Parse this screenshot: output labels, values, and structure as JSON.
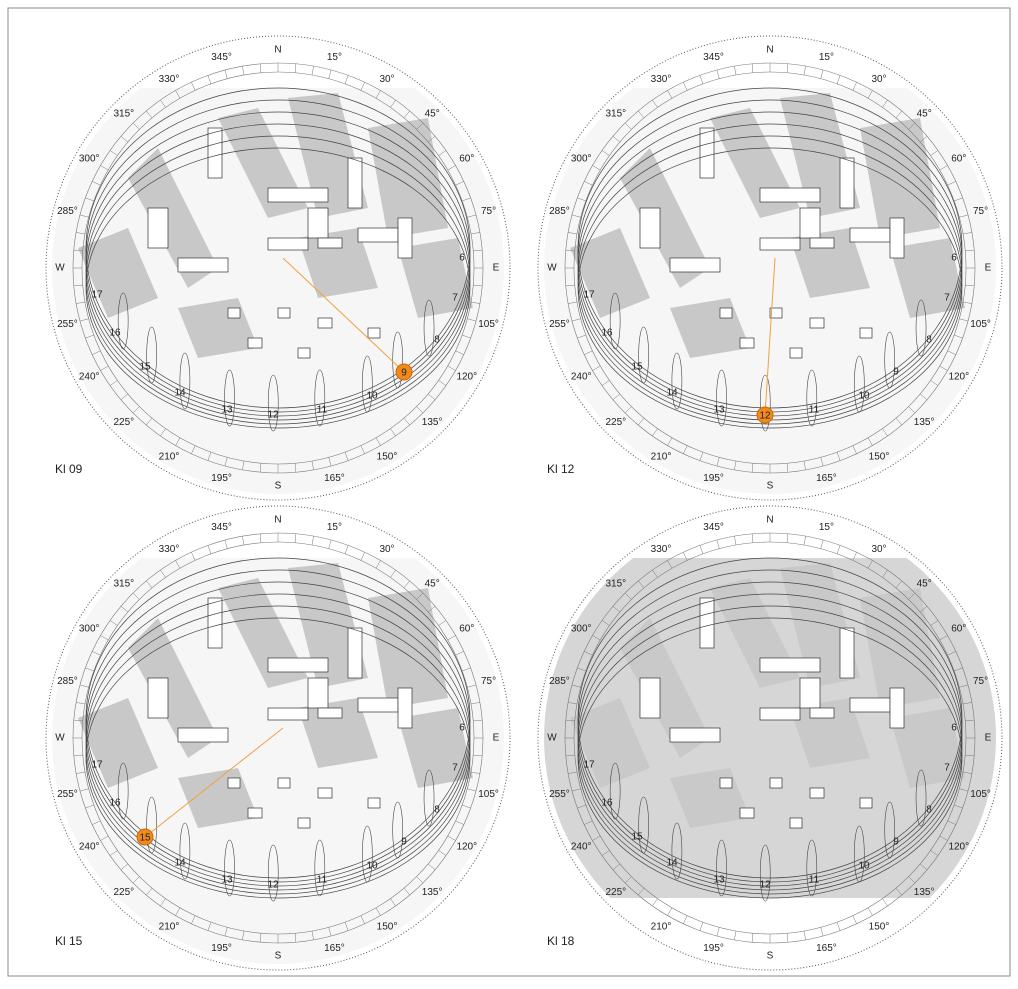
{
  "compass_labels": [
    "N",
    "15°",
    "30°",
    "45°",
    "60°",
    "75°",
    "E",
    "105°",
    "120°",
    "135°",
    "150°",
    "165°",
    "S",
    "195°",
    "210°",
    "225°",
    "240°",
    "255°",
    "W",
    "285°",
    "300°",
    "315°",
    "330°",
    "345°"
  ],
  "hour_labels": [
    "6",
    "7",
    "8",
    "9",
    "10",
    "11",
    "12",
    "13",
    "14",
    "15",
    "16",
    "17"
  ],
  "panels": [
    {
      "label": "Kl 09",
      "sun": "9"
    },
    {
      "label": "Kl 12",
      "sun": "12"
    },
    {
      "label": "Kl 15",
      "sun": "15"
    },
    {
      "label": "Kl 18"
    }
  ]
}
